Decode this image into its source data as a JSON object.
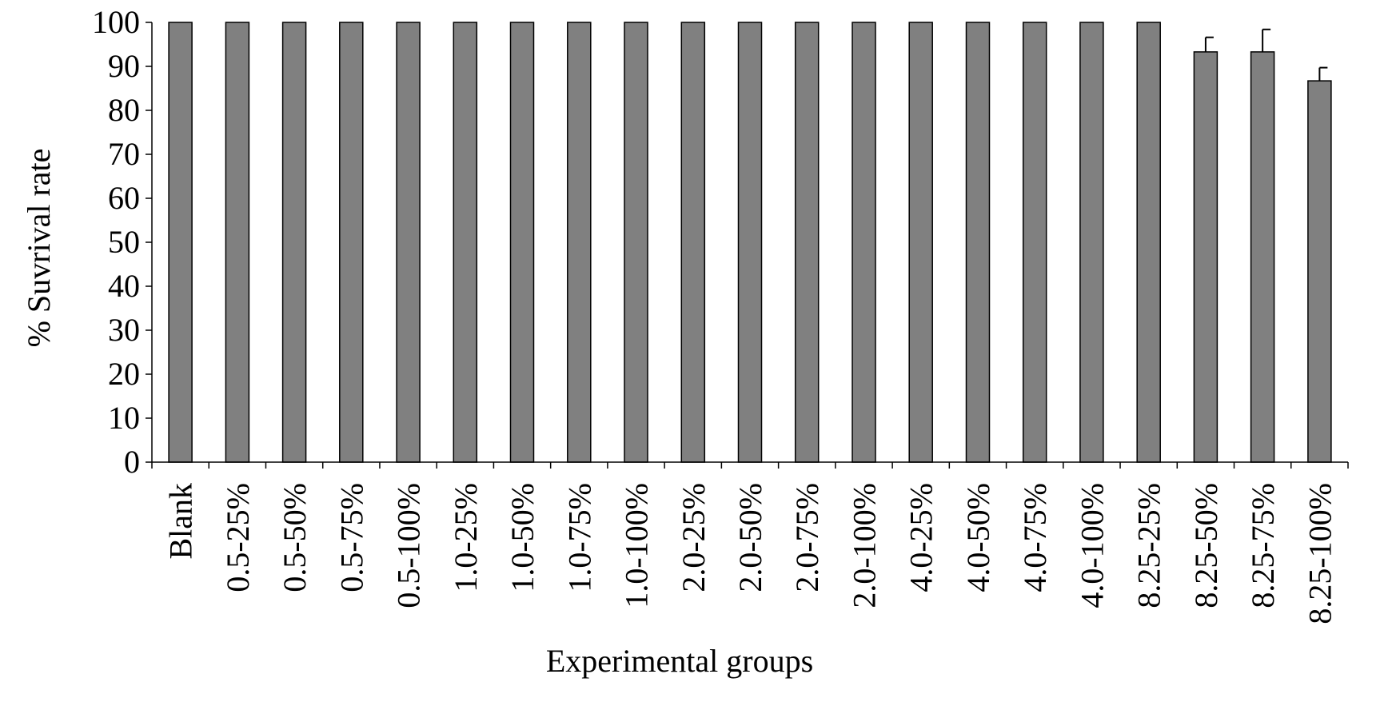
{
  "chart_data": {
    "type": "bar",
    "title": "",
    "xlabel": "Experimental groups",
    "ylabel": "% Suvrival rate",
    "ylim": [
      0,
      100
    ],
    "yticks": [
      0,
      10,
      20,
      30,
      40,
      50,
      60,
      70,
      80,
      90,
      100
    ],
    "grid": false,
    "legend": "none",
    "bar_color": "#808080",
    "categories": [
      "Blank",
      "0.5-25%",
      "0.5-50%",
      "0.5-75%",
      "0.5-100%",
      "1.0-25%",
      "1.0-50%",
      "1.0-75%",
      "1.0-100%",
      "2.0-25%",
      "2.0-50%",
      "2.0-75%",
      "2.0-100%",
      "4.0-25%",
      "4.0-50%",
      "4.0-75%",
      "4.0-100%",
      "8.25-25%",
      "8.25-50%",
      "8.25-75%",
      "8.25-100%"
    ],
    "values": [
      100,
      100,
      100,
      100,
      100,
      100,
      100,
      100,
      100,
      100,
      100,
      100,
      100,
      100,
      100,
      100,
      100,
      100,
      93.3,
      93.3,
      86.7
    ],
    "error": [
      0,
      0,
      0,
      0,
      0,
      0,
      0,
      0,
      0,
      0,
      0,
      0,
      0,
      0,
      0,
      0,
      0,
      0,
      3.3,
      5.1,
      3.0
    ]
  }
}
